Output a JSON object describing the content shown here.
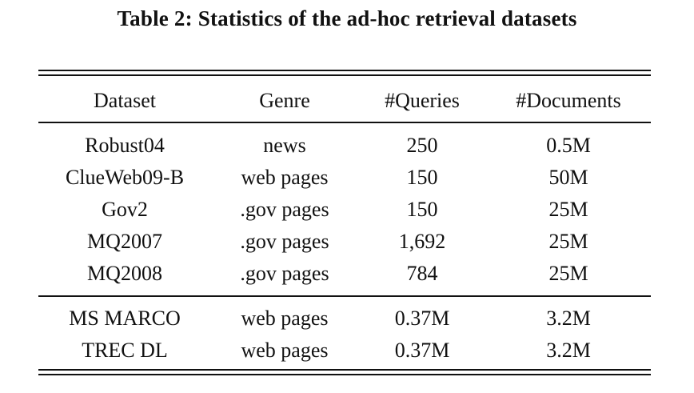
{
  "caption": "Table 2: Statistics of the ad-hoc retrieval datasets",
  "table": {
    "headers": [
      "Dataset",
      "Genre",
      "#Queries",
      "#Documents"
    ],
    "group1": [
      [
        "Robust04",
        "news",
        "250",
        "0.5M"
      ],
      [
        "ClueWeb09-B",
        "web pages",
        "150",
        "50M"
      ],
      [
        "Gov2",
        ".gov pages",
        "150",
        "25M"
      ],
      [
        "MQ2007",
        ".gov pages",
        "1,692",
        "25M"
      ],
      [
        "MQ2008",
        ".gov pages",
        "784",
        "25M"
      ]
    ],
    "group2": [
      [
        "MS MARCO",
        "web pages",
        "0.37M",
        "3.2M"
      ],
      [
        "TREC DL",
        "web pages",
        "0.37M",
        "3.2M"
      ]
    ]
  }
}
